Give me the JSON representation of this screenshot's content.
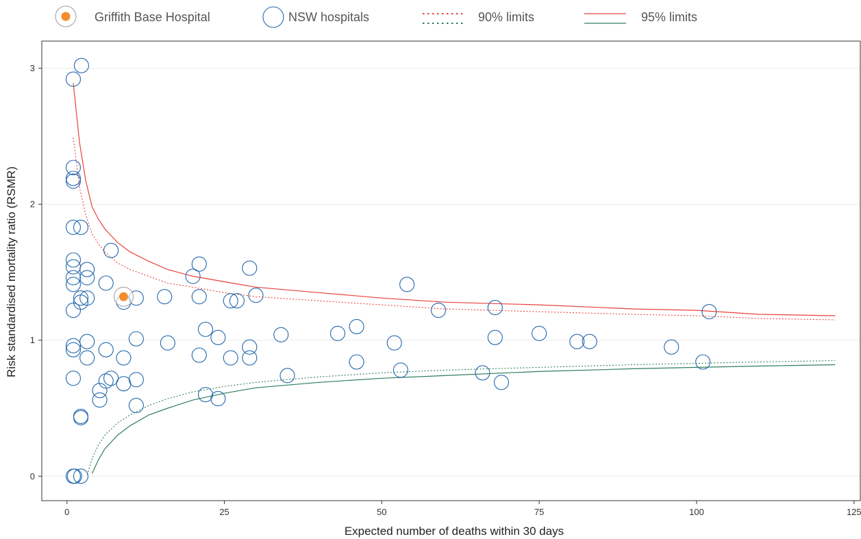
{
  "legend": {
    "griffith_label": "Griffith Base Hospital",
    "nsw_label": "NSW hospitals",
    "limits90_label": "90% limits",
    "limits95_label": "95% limits"
  },
  "chart_data": {
    "type": "scatter",
    "title": "",
    "xlabel": "Expected number of deaths within 30 days",
    "ylabel": "Risk standardised mortality ratio (RSMR)",
    "xlim": [
      -4,
      126
    ],
    "ylim": [
      -0.18,
      3.2
    ],
    "xticks": [
      0,
      25,
      50,
      75,
      100,
      125
    ],
    "yticks": [
      0,
      1,
      2,
      3
    ],
    "grid": true,
    "legend_position": "top",
    "colors": {
      "hospital_outline": "#2166ac",
      "highlight_fill": "#f28e2b",
      "upper_limit": "#e8413a",
      "lower_limit": "#2e7d5b",
      "grid": "#ebebeb"
    },
    "highlight": {
      "name": "Griffith Base Hospital",
      "x": 9,
      "y": 1.32
    },
    "series": [
      {
        "name": "NSW hospitals",
        "points": [
          [
            1,
            2.92
          ],
          [
            2.3,
            3.02
          ],
          [
            1,
            2.27
          ],
          [
            1,
            2.19
          ],
          [
            1,
            2.17
          ],
          [
            1,
            1.83
          ],
          [
            2.2,
            1.83
          ],
          [
            7,
            1.66
          ],
          [
            1,
            1.59
          ],
          [
            1,
            1.54
          ],
          [
            3.2,
            1.52
          ],
          [
            1,
            1.46
          ],
          [
            3.2,
            1.46
          ],
          [
            1,
            1.41
          ],
          [
            6.2,
            1.42
          ],
          [
            2.2,
            1.31
          ],
          [
            3.2,
            1.31
          ],
          [
            2.2,
            1.28
          ],
          [
            9,
            1.28
          ],
          [
            1,
            1.22
          ],
          [
            11,
            1.31
          ],
          [
            15.5,
            1.32
          ],
          [
            20,
            1.47
          ],
          [
            21,
            1.56
          ],
          [
            21,
            1.32
          ],
          [
            26,
            1.29
          ],
          [
            27,
            1.29
          ],
          [
            29,
            1.53
          ],
          [
            30,
            1.33
          ],
          [
            54,
            1.41
          ],
          [
            59,
            1.22
          ],
          [
            68,
            1.24
          ],
          [
            102,
            1.21
          ],
          [
            22,
            1.08
          ],
          [
            24,
            1.02
          ],
          [
            11,
            1.01
          ],
          [
            16,
            0.98
          ],
          [
            3.2,
            0.99
          ],
          [
            1,
            0.96
          ],
          [
            1,
            0.93
          ],
          [
            6.2,
            0.93
          ],
          [
            9,
            0.87
          ],
          [
            3.2,
            0.87
          ],
          [
            21,
            0.89
          ],
          [
            26,
            0.87
          ],
          [
            29,
            0.95
          ],
          [
            29,
            0.87
          ],
          [
            34,
            1.04
          ],
          [
            43,
            1.05
          ],
          [
            46,
            1.1
          ],
          [
            52,
            0.98
          ],
          [
            68,
            1.02
          ],
          [
            75,
            1.05
          ],
          [
            81,
            0.99
          ],
          [
            83,
            0.99
          ],
          [
            96,
            0.95
          ],
          [
            101,
            0.84
          ],
          [
            46,
            0.84
          ],
          [
            53,
            0.78
          ],
          [
            66,
            0.76
          ],
          [
            69,
            0.69
          ],
          [
            35,
            0.74
          ],
          [
            1,
            0.72
          ],
          [
            7,
            0.72
          ],
          [
            6.2,
            0.7
          ],
          [
            9,
            0.68
          ],
          [
            11,
            0.71
          ],
          [
            5.2,
            0.63
          ],
          [
            5.2,
            0.56
          ],
          [
            11,
            0.52
          ],
          [
            22,
            0.6
          ],
          [
            24,
            0.57
          ],
          [
            2.2,
            0.44
          ],
          [
            2.2,
            0.43
          ],
          [
            1,
            0
          ],
          [
            1.2,
            0
          ],
          [
            2.2,
            0
          ]
        ]
      }
    ],
    "limits": {
      "upper95": [
        [
          1,
          2.89
        ],
        [
          2,
          2.45
        ],
        [
          3,
          2.17
        ],
        [
          4,
          1.98
        ],
        [
          5,
          1.89
        ],
        [
          6,
          1.82
        ],
        [
          8,
          1.72
        ],
        [
          10,
          1.65
        ],
        [
          13,
          1.58
        ],
        [
          16,
          1.52
        ],
        [
          20,
          1.47
        ],
        [
          25,
          1.43
        ],
        [
          30,
          1.39
        ],
        [
          40,
          1.35
        ],
        [
          50,
          1.31
        ],
        [
          60,
          1.28
        ],
        [
          75,
          1.26
        ],
        [
          90,
          1.23
        ],
        [
          100,
          1.22
        ],
        [
          110,
          1.19
        ],
        [
          122,
          1.18
        ]
      ],
      "upper90": [
        [
          1,
          2.49
        ],
        [
          2,
          2.12
        ],
        [
          3,
          1.92
        ],
        [
          4,
          1.78
        ],
        [
          5,
          1.71
        ],
        [
          6,
          1.65
        ],
        [
          8,
          1.57
        ],
        [
          10,
          1.52
        ],
        [
          13,
          1.47
        ],
        [
          16,
          1.42
        ],
        [
          20,
          1.39
        ],
        [
          25,
          1.35
        ],
        [
          30,
          1.32
        ],
        [
          40,
          1.29
        ],
        [
          50,
          1.26
        ],
        [
          60,
          1.23
        ],
        [
          75,
          1.21
        ],
        [
          90,
          1.19
        ],
        [
          100,
          1.18
        ],
        [
          110,
          1.16
        ],
        [
          122,
          1.15
        ]
      ],
      "lower90": [
        [
          3.2,
          0.01
        ],
        [
          4,
          0.13
        ],
        [
          5,
          0.23
        ],
        [
          6,
          0.3
        ],
        [
          8,
          0.39
        ],
        [
          10,
          0.45
        ],
        [
          13,
          0.52
        ],
        [
          16,
          0.57
        ],
        [
          20,
          0.62
        ],
        [
          25,
          0.66
        ],
        [
          30,
          0.69
        ],
        [
          40,
          0.73
        ],
        [
          50,
          0.76
        ],
        [
          60,
          0.78
        ],
        [
          75,
          0.8
        ],
        [
          90,
          0.82
        ],
        [
          100,
          0.83
        ],
        [
          110,
          0.84
        ],
        [
          122,
          0.85
        ]
      ],
      "lower95": [
        [
          4,
          0.02
        ],
        [
          5,
          0.12
        ],
        [
          6,
          0.2
        ],
        [
          8,
          0.3
        ],
        [
          10,
          0.37
        ],
        [
          13,
          0.45
        ],
        [
          16,
          0.5
        ],
        [
          20,
          0.56
        ],
        [
          25,
          0.61
        ],
        [
          30,
          0.65
        ],
        [
          40,
          0.69
        ],
        [
          50,
          0.72
        ],
        [
          60,
          0.74
        ],
        [
          75,
          0.77
        ],
        [
          90,
          0.79
        ],
        [
          100,
          0.8
        ],
        [
          110,
          0.81
        ],
        [
          122,
          0.82
        ]
      ]
    }
  }
}
